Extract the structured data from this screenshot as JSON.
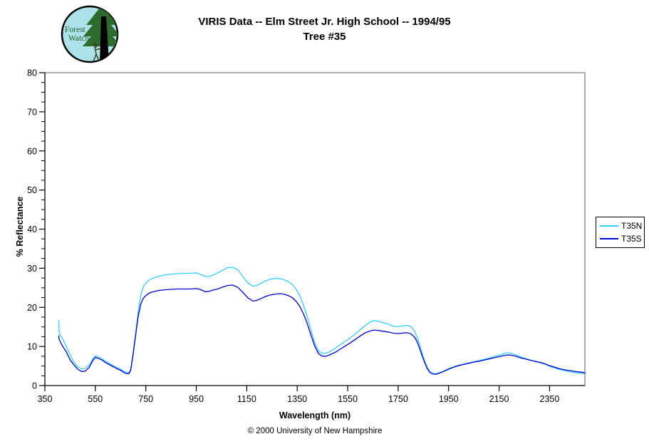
{
  "header": {
    "title_line1": "VIRIS Data -- Elm Street Jr. High School -- 1994/95",
    "title_line2": "Tree #35",
    "logo": {
      "text_line1": "Forest",
      "text_line2": "Watch",
      "bg_color": "#ADE2EA",
      "text_color": "#1B5E20",
      "foliage_color": "#2E6B2E",
      "trunk_color": "#000000"
    }
  },
  "legend": {
    "entries": [
      {
        "label": "T35N",
        "color": "#33CCFF"
      },
      {
        "label": "T35S",
        "color": "#0000CC"
      }
    ]
  },
  "footer": {
    "copyright": "© 2000 University of New Hampshire"
  },
  "colors": {
    "frame_gray": "#808080",
    "axis_black": "#000000",
    "background": "#FFFFFF"
  },
  "chart_data": {
    "type": "line",
    "title": "VIRIS Data -- Elm Street Jr. High School -- 1994/95  Tree #35",
    "xlabel": "Wavelength (nm)",
    "ylabel": "% Reflectance",
    "xlim": [
      350,
      2490
    ],
    "ylim": [
      0,
      80
    ],
    "xticks": [
      350,
      550,
      750,
      950,
      1150,
      1350,
      1550,
      1750,
      1950,
      2150,
      2350
    ],
    "yticks": [
      0,
      10,
      20,
      30,
      40,
      50,
      60,
      70,
      80
    ],
    "y_minor_step": 2.5,
    "grid": false,
    "legend_position": "right-outside",
    "x": [
      405,
      406,
      410,
      420,
      435,
      450,
      465,
      480,
      495,
      510,
      525,
      540,
      550,
      560,
      575,
      590,
      610,
      630,
      650,
      662,
      672,
      682,
      690,
      700,
      710,
      720,
      730,
      740,
      750,
      765,
      780,
      800,
      825,
      850,
      875,
      900,
      925,
      950,
      965,
      985,
      1000,
      1015,
      1035,
      1055,
      1075,
      1095,
      1115,
      1135,
      1155,
      1175,
      1190,
      1205,
      1225,
      1245,
      1265,
      1285,
      1300,
      1315,
      1330,
      1345,
      1360,
      1375,
      1390,
      1405,
      1420,
      1435,
      1450,
      1465,
      1480,
      1500,
      1520,
      1540,
      1560,
      1580,
      1600,
      1620,
      1640,
      1655,
      1670,
      1690,
      1710,
      1730,
      1750,
      1765,
      1780,
      1795,
      1805,
      1815,
      1825,
      1835,
      1845,
      1855,
      1865,
      1875,
      1885,
      1900,
      1915,
      1930,
      1950,
      1970,
      1990,
      2010,
      2030,
      2050,
      2070,
      2090,
      2110,
      2130,
      2150,
      2165,
      2180,
      2195,
      2210,
      2225,
      2240,
      2255,
      2270,
      2285,
      2300,
      2315,
      2330,
      2345,
      2360,
      2375,
      2390,
      2405,
      2420,
      2435,
      2450,
      2465,
      2480,
      2490
    ],
    "series": [
      {
        "name": "T35N",
        "color": "#33CCFF",
        "values": [
          16.6,
          14.0,
          12.9,
          12.0,
          10.0,
          7.9,
          6.0,
          4.8,
          4.3,
          4.4,
          5.2,
          6.8,
          7.6,
          7.4,
          6.9,
          6.2,
          5.5,
          4.8,
          4.2,
          3.7,
          3.4,
          3.2,
          4.0,
          8.5,
          13.5,
          19.0,
          23.0,
          25.3,
          26.2,
          27.1,
          27.5,
          27.9,
          28.3,
          28.5,
          28.6,
          28.7,
          28.7,
          28.8,
          28.5,
          27.9,
          27.9,
          28.2,
          28.8,
          29.5,
          30.2,
          30.2,
          29.6,
          27.8,
          26.2,
          25.4,
          25.6,
          26.1,
          26.8,
          27.2,
          27.4,
          27.3,
          27.0,
          26.6,
          25.9,
          24.7,
          23.0,
          20.5,
          17.5,
          14.0,
          10.8,
          8.8,
          8.2,
          8.3,
          8.7,
          9.5,
          10.4,
          11.3,
          12.2,
          13.2,
          14.3,
          15.4,
          16.3,
          16.6,
          16.5,
          16.1,
          15.7,
          15.2,
          15.1,
          15.2,
          15.4,
          15.3,
          14.8,
          13.9,
          12.4,
          10.4,
          8.3,
          6.3,
          4.7,
          3.6,
          3.1,
          3.0,
          3.3,
          3.7,
          4.3,
          4.8,
          5.2,
          5.5,
          5.8,
          6.1,
          6.4,
          6.7,
          7.0,
          7.4,
          7.8,
          8.1,
          8.4,
          8.3,
          8.0,
          7.6,
          7.2,
          6.9,
          6.6,
          6.3,
          6.0,
          5.8,
          5.5,
          5.1,
          4.7,
          4.4,
          4.1,
          3.9,
          3.7,
          3.5,
          3.3,
          3.2,
          3.1,
          3.0
        ]
      },
      {
        "name": "T35S",
        "color": "#0000CC",
        "values": [
          12.7,
          12.0,
          11.3,
          10.1,
          8.6,
          6.6,
          5.3,
          4.2,
          3.6,
          3.7,
          4.6,
          6.4,
          7.2,
          7.0,
          6.6,
          5.9,
          5.2,
          4.5,
          3.9,
          3.4,
          3.1,
          3.0,
          3.8,
          8.2,
          13.0,
          17.8,
          20.8,
          22.3,
          23.0,
          23.7,
          24.0,
          24.3,
          24.5,
          24.6,
          24.7,
          24.7,
          24.7,
          24.8,
          24.6,
          24.0,
          24.1,
          24.4,
          24.7,
          25.2,
          25.6,
          25.7,
          25.1,
          23.8,
          22.4,
          21.6,
          21.8,
          22.2,
          22.8,
          23.2,
          23.4,
          23.5,
          23.3,
          23.0,
          22.5,
          21.6,
          20.3,
          18.3,
          15.8,
          12.8,
          10.0,
          8.1,
          7.5,
          7.5,
          7.9,
          8.5,
          9.3,
          10.1,
          10.9,
          11.8,
          12.7,
          13.5,
          14.0,
          14.2,
          14.1,
          13.9,
          13.7,
          13.4,
          13.3,
          13.4,
          13.5,
          13.4,
          13.0,
          12.4,
          11.2,
          9.5,
          7.6,
          5.9,
          4.4,
          3.4,
          3.0,
          2.9,
          3.2,
          3.6,
          4.2,
          4.7,
          5.1,
          5.4,
          5.7,
          6.0,
          6.2,
          6.5,
          6.8,
          7.1,
          7.4,
          7.6,
          7.8,
          7.8,
          7.6,
          7.3,
          7.0,
          6.8,
          6.5,
          6.3,
          6.1,
          5.9,
          5.6,
          5.2,
          4.9,
          4.6,
          4.3,
          4.1,
          3.9,
          3.8,
          3.6,
          3.5,
          3.4,
          3.2
        ]
      }
    ]
  }
}
